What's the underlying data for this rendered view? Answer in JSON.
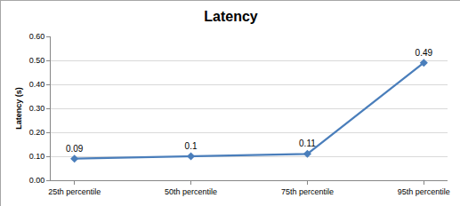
{
  "chart_data": {
    "type": "line",
    "title": "Latency",
    "ylabel": "Latency (s)",
    "categories": [
      "25th percentile",
      "50th percentile",
      "75th percentile",
      "95th percentile"
    ],
    "values": [
      0.09,
      0.1,
      0.11,
      0.49
    ],
    "color": "#4a7ebb",
    "marker": "diamond",
    "line_style": "solid",
    "data_labels": true,
    "grid": true,
    "ylim": [
      0,
      0.6
    ],
    "yticks": [
      {
        "value": 0,
        "label": "0.00"
      },
      {
        "value": 0.1,
        "label": "0.10"
      },
      {
        "value": 0.2,
        "label": "0.20"
      },
      {
        "value": 0.3,
        "label": "0.30"
      },
      {
        "value": 0.4,
        "label": "0.40"
      },
      {
        "value": 0.5,
        "label": "0.50"
      },
      {
        "value": 0.6,
        "label": "0.60"
      }
    ]
  }
}
